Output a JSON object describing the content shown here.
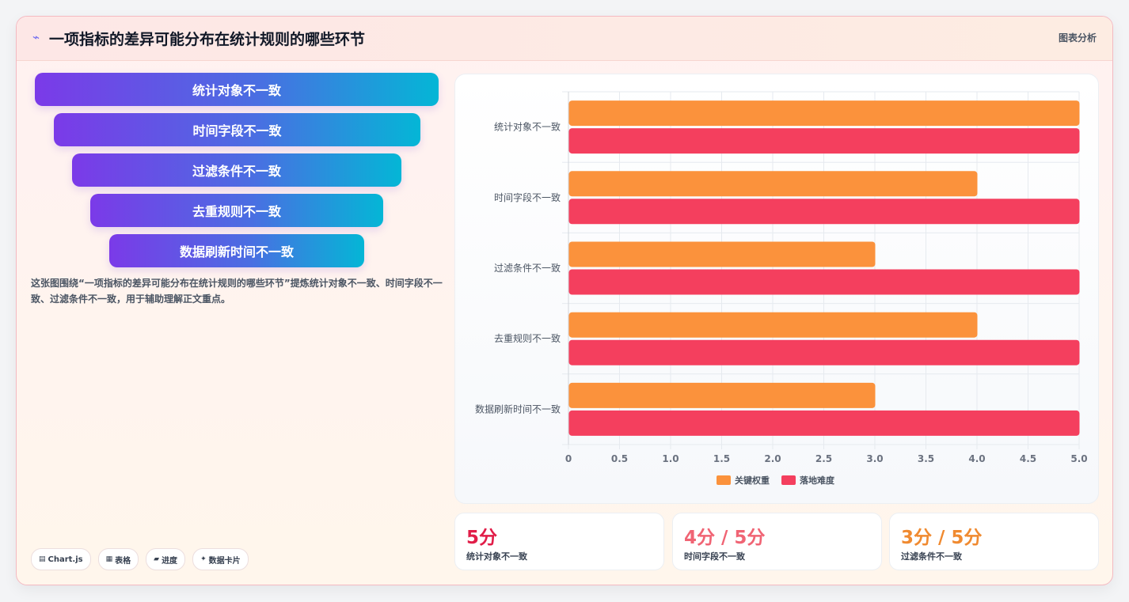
{
  "header": {
    "icon": "bolt-icon",
    "title": "一项指标的差异可能分布在统计规则的哪些环节",
    "badge": "图表分析"
  },
  "funnel": [
    "统计对象不一致",
    "时间字段不一致",
    "过滤条件不一致",
    "去重规则不一致",
    "数据刷新时间不一致"
  ],
  "description": "这张图围绕“一项指标的差异可能分布在统计规则的哪些环节”提炼统计对象不一致、时间字段不一致、过滤条件不一致，用于辅助理解正文重点。",
  "chips": [
    {
      "icon": "▤",
      "label": "Chart.js"
    },
    {
      "icon": "▦",
      "label": "表格"
    },
    {
      "icon": "▰",
      "label": "进度"
    },
    {
      "icon": "✦",
      "label": "数据卡片"
    }
  ],
  "chart_data": {
    "type": "bar",
    "orientation": "horizontal",
    "categories": [
      "统计对象不一致",
      "时间字段不一致",
      "过滤条件不一致",
      "去重规则不一致",
      "数据刷新时间不一致"
    ],
    "series": [
      {
        "name": "关键权重",
        "color": "#fb923c",
        "values": [
          5,
          4,
          3,
          4,
          3
        ]
      },
      {
        "name": "落地难度",
        "color": "#f43f5e",
        "values": [
          5,
          5,
          5,
          5,
          5
        ]
      }
    ],
    "xlim": [
      0,
      5
    ],
    "xticks": [
      "0",
      "0.5",
      "1.0",
      "1.5",
      "2.0",
      "2.5",
      "3.0",
      "3.5",
      "4.0",
      "4.5",
      "5.0"
    ],
    "legend_position": "bottom",
    "grid": true
  },
  "stats": [
    {
      "value": "5分",
      "label": "统计对象不一致",
      "color": "#e11d48"
    },
    {
      "value": "4分 / 5分",
      "label": "时间字段不一致",
      "color": "#f06474"
    },
    {
      "value": "3分 / 5分",
      "label": "过滤条件不一致",
      "color": "#f08a30"
    }
  ]
}
